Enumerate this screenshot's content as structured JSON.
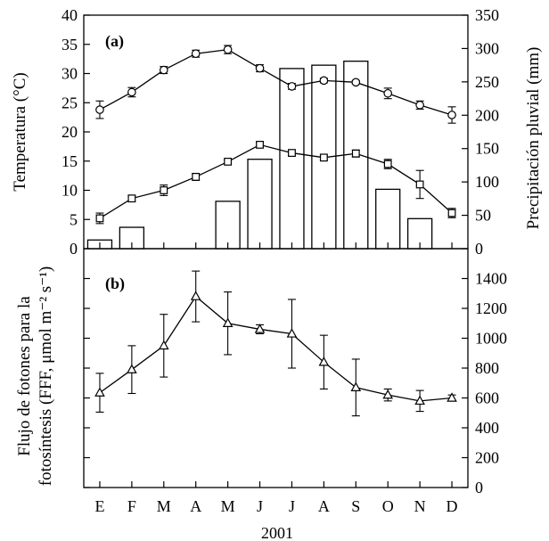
{
  "chart_data": [
    {
      "panel": "(a)",
      "type": "line+bar",
      "categories": [
        "E",
        "F",
        "M",
        "A",
        "M",
        "J",
        "J",
        "A",
        "S",
        "O",
        "N",
        "D"
      ],
      "ylabel_left": "Temperatura (°C)",
      "ylabel_right": "Precipitación pluvial (mm)",
      "ylim_left": [
        0,
        40
      ],
      "yticks_left": [
        0,
        5,
        10,
        15,
        20,
        25,
        30,
        35,
        40
      ],
      "ylim_right": [
        0,
        350
      ],
      "yticks_right": [
        0,
        50,
        100,
        150,
        200,
        250,
        300,
        350
      ],
      "series": [
        {
          "marker": "circle",
          "axis": "left",
          "values": [
            23.8,
            26.8,
            30.6,
            33.4,
            34.1,
            30.9,
            27.8,
            28.8,
            28.5,
            26.6,
            24.6,
            22.9
          ],
          "errors": [
            1.5,
            0.8,
            0.6,
            0.6,
            0.7,
            0.6,
            0.5,
            0.4,
            0.3,
            0.9,
            0.7,
            1.4
          ]
        },
        {
          "marker": "square",
          "axis": "left",
          "values": [
            5.2,
            8.6,
            10.0,
            12.3,
            14.9,
            17.8,
            16.4,
            15.6,
            16.3,
            14.5,
            11.0,
            6.1
          ],
          "errors": [
            0.9,
            0.5,
            0.9,
            0.6,
            0.3,
            0.4,
            0.4,
            0.4,
            0.6,
            0.8,
            2.4,
            0.8
          ]
        },
        {
          "type": "bar",
          "axis": "right",
          "values": [
            13,
            32,
            0,
            0,
            71,
            134,
            270,
            275,
            281,
            89,
            45,
            0
          ]
        }
      ]
    },
    {
      "panel": "(b)",
      "type": "line",
      "categories": [
        "E",
        "F",
        "M",
        "A",
        "M",
        "J",
        "J",
        "A",
        "S",
        "O",
        "N",
        "D"
      ],
      "xlabel": "2001",
      "ylabel": "Flujo de fotones para la fotosíntesis (FFF, μmol m⁻² s⁻¹)",
      "ylabel_line1": "Flujo de fotones para la",
      "ylabel_line2": "fotosíntesis (FFF, μmol m⁻² s⁻¹)",
      "ylim": [
        0,
        1600
      ],
      "yticks": [
        0,
        200,
        400,
        600,
        800,
        1000,
        1200,
        1400
      ],
      "series": [
        {
          "marker": "triangle",
          "values": [
            635,
            790,
            950,
            1280,
            1100,
            1060,
            1030,
            840,
            670,
            620,
            580,
            600
          ],
          "errors": [
            130,
            160,
            210,
            170,
            210,
            30,
            230,
            180,
            190,
            40,
            70,
            20
          ]
        }
      ]
    }
  ]
}
